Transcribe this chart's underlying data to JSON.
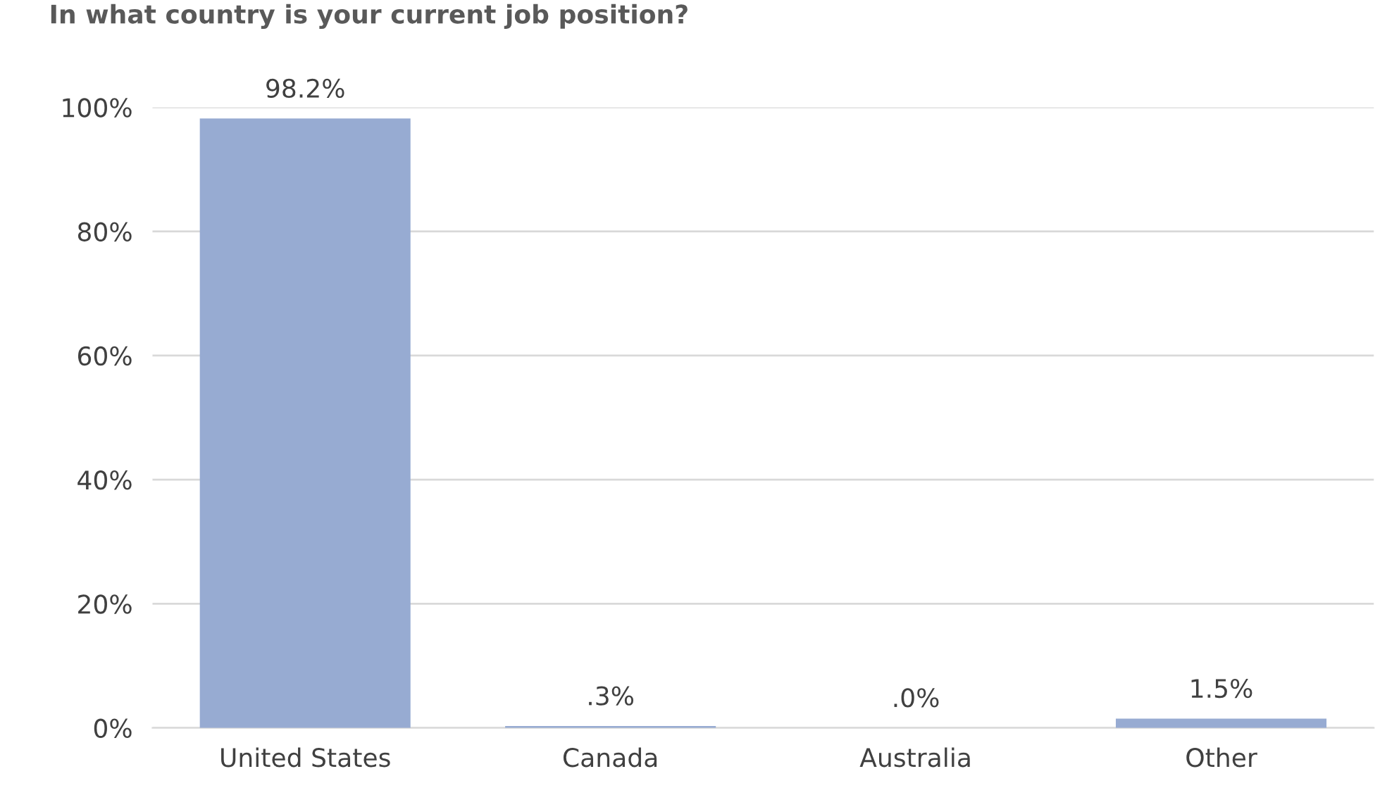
{
  "chart_data": {
    "type": "bar",
    "title": "In what country is your current job position?",
    "categories": [
      "United States",
      "Canada",
      "Australia",
      "Other"
    ],
    "values": [
      98.2,
      0.3,
      0.0,
      1.5
    ],
    "value_labels": [
      "98.2%",
      ".3%",
      ".0%",
      "1.5%"
    ],
    "color": "#97abd2",
    "ylim": [
      0,
      100
    ],
    "yticks": [
      {
        "value": 0,
        "label": "0%"
      },
      {
        "value": 20,
        "label": "20%"
      },
      {
        "value": 40,
        "label": "40%"
      },
      {
        "value": 60,
        "label": "60%"
      },
      {
        "value": 80,
        "label": "80%"
      },
      {
        "value": 100,
        "label": "100%"
      }
    ],
    "grid": "y"
  }
}
